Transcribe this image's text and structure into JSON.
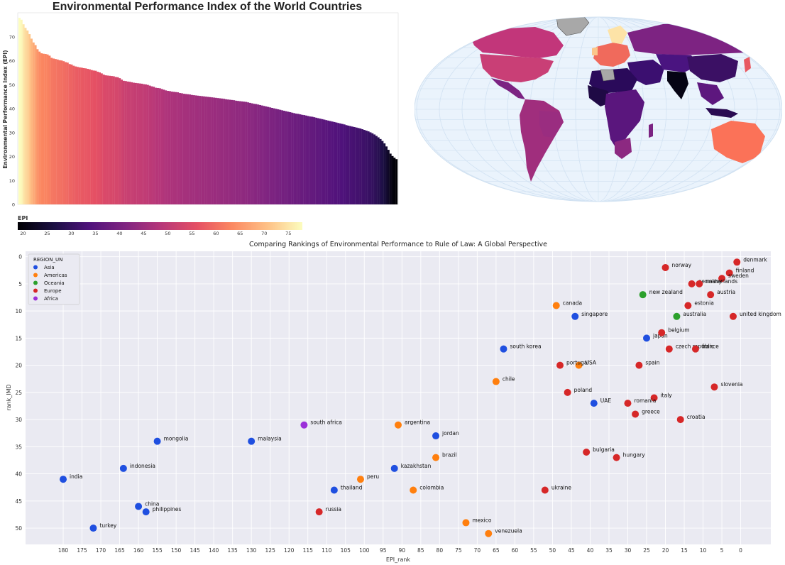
{
  "colors": {
    "asia": "#1f4fe0",
    "americas": "#ff7f0e",
    "oceania": "#2ca02c",
    "europe": "#d62728",
    "africa": "#9b30d9",
    "plot_bg": "#eaeaf2",
    "ocean": "#eaf3fc",
    "land_gray": "#a8a8a8"
  },
  "chart_data": [
    {
      "type": "bar",
      "title": "Environmental Performance Index of the World Countries",
      "xlabel": "",
      "ylabel": "Environmental Performance Index (EPI)",
      "ylim": [
        0,
        80
      ],
      "yticks": [
        0,
        10,
        20,
        30,
        40,
        50,
        60,
        70
      ],
      "grid": false,
      "values": [
        77.9,
        77.1,
        75.2,
        73.7,
        72.6,
        71.1,
        69.2,
        67.6,
        66.5,
        64.8,
        63.8,
        63.1,
        62.9,
        62.8,
        62.6,
        62.1,
        61.2,
        60.9,
        60.7,
        60.5,
        60.2,
        60.1,
        59.8,
        59.4,
        59.2,
        58.6,
        58.4,
        57.9,
        57.6,
        57.4,
        57.2,
        57.1,
        56.9,
        56.8,
        56.6,
        56.4,
        56.1,
        55.9,
        55.8,
        55.4,
        55.1,
        54.7,
        54.2,
        53.9,
        53.8,
        53.7,
        53.6,
        53.5,
        53.2,
        53.1,
        52.7,
        52.1,
        51.6,
        51.5,
        51.3,
        51.2,
        51.0,
        50.8,
        50.7,
        50.6,
        50.5,
        50.4,
        50.2,
        50.1,
        49.9,
        49.6,
        49.3,
        49.1,
        48.7,
        48.6,
        48.5,
        48.2,
        47.9,
        47.6,
        47.4,
        47.3,
        47.1,
        47.0,
        46.9,
        46.8,
        46.5,
        46.4,
        46.2,
        46.1,
        46.0,
        45.9,
        45.7,
        45.6,
        45.5,
        45.4,
        45.3,
        45.2,
        45.1,
        45.0,
        44.9,
        44.8,
        44.7,
        44.6,
        44.5,
        44.4,
        44.3,
        44.2,
        44.1,
        43.9,
        43.8,
        43.7,
        43.6,
        43.5,
        43.3,
        43.2,
        43.1,
        43.0,
        42.9,
        42.8,
        42.6,
        42.4,
        42.2,
        42.0,
        41.9,
        41.7,
        41.5,
        41.3,
        41.1,
        40.9,
        40.7,
        40.5,
        40.3,
        40.1,
        39.9,
        39.7,
        39.5,
        39.3,
        39.1,
        38.9,
        38.7,
        38.5,
        38.3,
        38.1,
        37.9,
        37.8,
        37.6,
        37.4,
        37.3,
        37.1,
        36.9,
        36.7,
        36.6,
        36.4,
        36.2,
        36.0,
        35.8,
        35.6,
        35.4,
        35.2,
        35.0,
        34.8,
        34.6,
        34.4,
        34.2,
        34.0,
        33.8,
        33.6,
        33.4,
        33.1,
        32.9,
        32.7,
        32.5,
        32.3,
        32.1,
        31.9,
        31.7,
        31.4,
        31.1,
        30.8,
        30.5,
        30.1,
        29.7,
        29.2,
        28.6,
        28.0,
        27.3,
        26.5,
        25.5,
        24.2,
        22.8,
        21.2,
        20.2,
        19.5,
        18.9
      ]
    },
    {
      "type": "choropleth",
      "colorbar_title": "EPI",
      "colorbar_ticks": [
        20,
        25,
        30,
        35,
        40,
        45,
        50,
        55,
        60,
        65,
        70,
        75
      ],
      "colorbar_range": [
        18.9,
        77.9
      ]
    },
    {
      "type": "scatter",
      "title": "Comparing Rankings of Environmental Performance to Rule of Law: A Global Perspective",
      "xlabel": "EPI_rank",
      "ylabel": "rank_IMD",
      "xlim": [
        190,
        -8
      ],
      "ylim": [
        53,
        -1
      ],
      "xticks": [
        180,
        175,
        170,
        165,
        160,
        155,
        150,
        145,
        140,
        135,
        130,
        125,
        120,
        115,
        110,
        105,
        100,
        95,
        90,
        85,
        80,
        75,
        70,
        65,
        60,
        55,
        50,
        45,
        40,
        35,
        30,
        25,
        20,
        15,
        10,
        5,
        0
      ],
      "yticks": [
        0,
        5,
        10,
        15,
        20,
        25,
        30,
        35,
        40,
        45,
        50
      ],
      "grid": true,
      "legend_title": "REGION_UN",
      "legend_position": "top-left",
      "series": [
        {
          "name": "Asia",
          "color": "#1f4fe0",
          "points": [
            {
              "label": "singapore",
              "x": 44,
              "y": 11
            },
            {
              "label": "japan",
              "x": 25,
              "y": 15
            },
            {
              "label": "south korea",
              "x": 63,
              "y": 17
            },
            {
              "label": "UAE",
              "x": 39,
              "y": 27
            },
            {
              "label": "jordan",
              "x": 81,
              "y": 33
            },
            {
              "label": "mongolia",
              "x": 155,
              "y": 34
            },
            {
              "label": "malaysia",
              "x": 130,
              "y": 34
            },
            {
              "label": "kazakhstan",
              "x": 92,
              "y": 39
            },
            {
              "label": "indonesia",
              "x": 164,
              "y": 39
            },
            {
              "label": "india",
              "x": 180,
              "y": 41
            },
            {
              "label": "thailand",
              "x": 108,
              "y": 43
            },
            {
              "label": "china",
              "x": 160,
              "y": 46
            },
            {
              "label": "philippines",
              "x": 158,
              "y": 47
            },
            {
              "label": "turkey",
              "x": 172,
              "y": 50
            }
          ]
        },
        {
          "name": "Americas",
          "color": "#ff7f0e",
          "points": [
            {
              "label": "canada",
              "x": 49,
              "y": 9
            },
            {
              "label": "USA",
              "x": 43,
              "y": 20
            },
            {
              "label": "chile",
              "x": 65,
              "y": 23
            },
            {
              "label": "argentina",
              "x": 91,
              "y": 31
            },
            {
              "label": "brazil",
              "x": 81,
              "y": 37
            },
            {
              "label": "peru",
              "x": 101,
              "y": 41
            },
            {
              "label": "colombia",
              "x": 87,
              "y": 43
            },
            {
              "label": "mexico",
              "x": 73,
              "y": 49
            },
            {
              "label": "venezuela",
              "x": 67,
              "y": 51
            }
          ]
        },
        {
          "name": "Oceania",
          "color": "#2ca02c",
          "points": [
            {
              "label": "new zealand",
              "x": 26,
              "y": 7
            },
            {
              "label": "australia",
              "x": 17,
              "y": 11
            }
          ]
        },
        {
          "name": "Europe",
          "color": "#d62728",
          "points": [
            {
              "label": "denmark",
              "x": 1,
              "y": 1
            },
            {
              "label": "norway",
              "x": 20,
              "y": 2
            },
            {
              "label": "finland",
              "x": 3,
              "y": 3
            },
            {
              "label": "sweden",
              "x": 5,
              "y": 4
            },
            {
              "label": "germany",
              "x": 13,
              "y": 5
            },
            {
              "label": "netherlands",
              "x": 11,
              "y": 5
            },
            {
              "label": "austria",
              "x": 8,
              "y": 7
            },
            {
              "label": "estonia",
              "x": 14,
              "y": 9
            },
            {
              "label": "united kingdom",
              "x": 2,
              "y": 11
            },
            {
              "label": "belgium",
              "x": 21,
              "y": 14
            },
            {
              "label": "czech republic",
              "x": 19,
              "y": 17
            },
            {
              "label": "france",
              "x": 12,
              "y": 17
            },
            {
              "label": "portugal",
              "x": 48,
              "y": 20
            },
            {
              "label": "spain",
              "x": 27,
              "y": 20
            },
            {
              "label": "slovenia",
              "x": 7,
              "y": 24
            },
            {
              "label": "poland",
              "x": 46,
              "y": 25
            },
            {
              "label": "italy",
              "x": 23,
              "y": 26
            },
            {
              "label": "romania",
              "x": 30,
              "y": 27
            },
            {
              "label": "greece",
              "x": 28,
              "y": 29
            },
            {
              "label": "croatia",
              "x": 16,
              "y": 30
            },
            {
              "label": "bulgaria",
              "x": 41,
              "y": 36
            },
            {
              "label": "hungary",
              "x": 33,
              "y": 37
            },
            {
              "label": "ukraine",
              "x": 52,
              "y": 43
            },
            {
              "label": "russia",
              "x": 112,
              "y": 47
            }
          ]
        },
        {
          "name": "Africa",
          "color": "#9b30d9",
          "points": [
            {
              "label": "south africa",
              "x": 116,
              "y": 31
            }
          ]
        }
      ]
    }
  ]
}
